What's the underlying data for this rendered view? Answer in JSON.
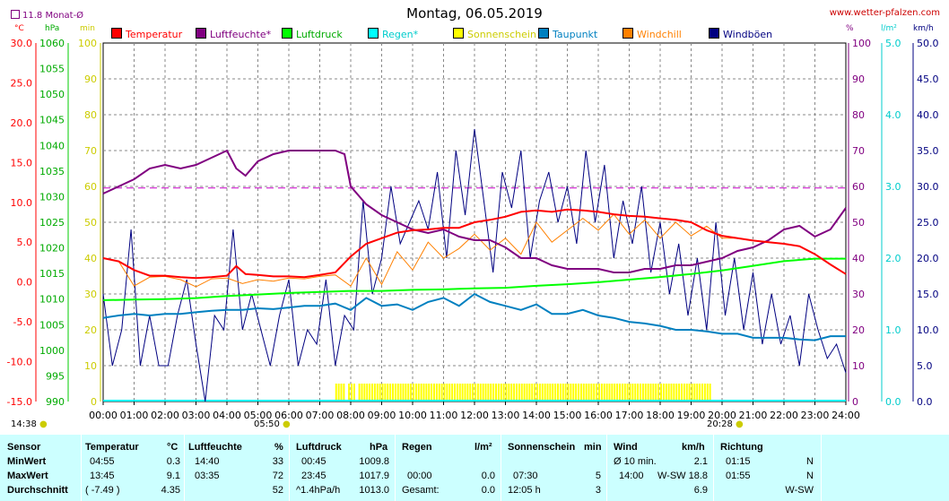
{
  "header": {
    "title": "Montag, 06.05.2019",
    "site": "www.wetter-pfalzen.com",
    "monthly_avg": "11.8 Monat-Ø"
  },
  "units": {
    "temp": "°C",
    "pressure": "hPa",
    "sun": "min",
    "humidity": "%",
    "rain": "l/m²",
    "wind": "km/h"
  },
  "legend": [
    {
      "label": "Temperatur",
      "color": "#ff0000"
    },
    {
      "label": "Luftfeuchte*",
      "color": "#800080"
    },
    {
      "label": "Luftdruck",
      "color": "#00ff00"
    },
    {
      "label": "Regen*",
      "color": "#00ffff"
    },
    {
      "label": "Sonnenschein",
      "color": "#ffff00"
    },
    {
      "label": "Taupunkt",
      "color": "#0080c0"
    },
    {
      "label": "Windchill",
      "color": "#ff8000"
    },
    {
      "label": "Windböen",
      "color": "#000080"
    }
  ],
  "axes": {
    "temp_ticks": [
      "30.0",
      "25.0",
      "20.0",
      "15.0",
      "10.0",
      "5.0",
      "0.0",
      "-5.0",
      "-10.0",
      "-15.0"
    ],
    "pressure_ticks": [
      "1060",
      "1055",
      "1050",
      "1045",
      "1040",
      "1035",
      "1030",
      "1025",
      "1020",
      "1015",
      "1010",
      "1005",
      "1000",
      "995",
      "990"
    ],
    "sun_ticks": [
      "100",
      "90",
      "80",
      "70",
      "60",
      "50",
      "40",
      "30",
      "20",
      "10",
      "0"
    ],
    "humidity_ticks": [
      "100",
      "90",
      "80",
      "70",
      "60",
      "50",
      "40",
      "30",
      "20",
      "10",
      "0"
    ],
    "rain_ticks": [
      "5.0",
      "4.0",
      "3.0",
      "2.0",
      "1.0",
      "0.0"
    ],
    "wind_ticks": [
      "50.0",
      "45.0",
      "40.0",
      "35.0",
      "30.0",
      "25.0",
      "20.0",
      "15.0",
      "10.0",
      "5.0",
      "0.0"
    ],
    "time_ticks": [
      "00:00",
      "01:00",
      "02:00",
      "03:00",
      "04:00",
      "05:00",
      "06:00",
      "07:00",
      "08:00",
      "09:00",
      "10:00",
      "11:00",
      "12:00",
      "13:00",
      "14:00",
      "15:00",
      "16:00",
      "17:00",
      "18:00",
      "19:00",
      "20:00",
      "21:00",
      "22:00",
      "23:00",
      "24:00"
    ]
  },
  "day_info": {
    "daylength": "14:38",
    "sunrise": "05:50",
    "sunset": "20:28"
  },
  "chart_data": {
    "type": "line",
    "title": "Montag, 06.05.2019",
    "x_unit": "hours",
    "xlim": [
      0,
      24
    ],
    "ylim_temp": [
      -15,
      30
    ],
    "ylim_pressure": [
      990,
      1060
    ],
    "ylim_humidity": [
      0,
      100
    ],
    "ylim_wind": [
      0,
      50
    ],
    "ylim_sun": [
      0,
      100
    ],
    "ylim_rain": [
      0,
      5
    ],
    "monthly_avg_temp": 11.8,
    "grid": true,
    "series": [
      {
        "name": "Temperatur",
        "color": "#ff0000",
        "axis": "temp",
        "x": [
          0,
          0.5,
          1,
          1.5,
          2,
          2.5,
          3,
          3.5,
          4,
          4.3,
          4.6,
          5,
          5.5,
          6,
          6.5,
          7,
          7.5,
          8,
          8.5,
          9,
          9.5,
          10,
          10.5,
          11,
          11.5,
          12,
          12.5,
          13,
          13.5,
          14,
          14.5,
          15,
          15.5,
          16,
          16.5,
          17,
          17.5,
          18,
          18.5,
          19,
          19.5,
          20,
          20.5,
          21,
          21.5,
          22,
          22.5,
          23,
          23.5,
          24
        ],
        "y": [
          3,
          2.6,
          1.5,
          0.8,
          0.8,
          0.6,
          0.5,
          0.6,
          0.8,
          2.0,
          1.0,
          0.9,
          0.7,
          0.7,
          0.6,
          0.9,
          1.2,
          3.2,
          4.8,
          5.5,
          6.2,
          6.5,
          6.6,
          6.8,
          6.8,
          7.5,
          7.8,
          8.2,
          8.8,
          9.0,
          8.8,
          9.1,
          9.0,
          8.8,
          8.5,
          8.3,
          8.2,
          8.0,
          7.8,
          7.5,
          6.5,
          5.8,
          5.5,
          5.2,
          5.0,
          4.8,
          4.5,
          3.5,
          2.2,
          1.0
        ]
      },
      {
        "name": "Luftfeuchte*",
        "color": "#800080",
        "axis": "humidity",
        "x": [
          0,
          0.5,
          1,
          1.5,
          2,
          2.5,
          3,
          3.5,
          4,
          4.3,
          4.6,
          5,
          5.5,
          6,
          6.5,
          7,
          7.5,
          7.8,
          8,
          8.5,
          9,
          9.5,
          10,
          10.5,
          11,
          11.5,
          12,
          12.5,
          13,
          13.5,
          14,
          14.5,
          15,
          15.5,
          16,
          16.5,
          17,
          17.5,
          18,
          18.5,
          19,
          19.5,
          20,
          20.5,
          21,
          21.5,
          22,
          22.5,
          23,
          23.5,
          24
        ],
        "y": [
          58,
          60,
          62,
          65,
          66,
          65,
          66,
          68,
          70,
          65,
          63,
          67,
          69,
          70,
          70,
          70,
          70,
          69,
          60,
          55,
          52,
          50,
          48,
          47,
          48,
          46,
          45,
          45,
          43,
          40,
          40,
          38,
          37,
          37,
          37,
          36,
          36,
          37,
          37,
          38,
          38,
          39,
          40,
          42,
          43,
          45,
          48,
          49,
          46,
          48,
          54
        ]
      },
      {
        "name": "Luftdruck",
        "color": "#00ff00",
        "axis": "pressure",
        "x": [
          0,
          1,
          2,
          3,
          4,
          5,
          6,
          7,
          8,
          9,
          10,
          11,
          12,
          13,
          14,
          15,
          16,
          17,
          18,
          19,
          20,
          21,
          22,
          23,
          24
        ],
        "y": [
          1009.8,
          1009.9,
          1010.0,
          1010.2,
          1010.6,
          1010.9,
          1011.2,
          1011.4,
          1011.6,
          1011.6,
          1011.8,
          1011.9,
          1012.1,
          1012.2,
          1012.6,
          1012.9,
          1013.3,
          1013.8,
          1014.3,
          1014.9,
          1015.6,
          1016.5,
          1017.4,
          1017.9,
          1017.9
        ]
      },
      {
        "name": "Taupunkt",
        "color": "#0080c0",
        "axis": "temp",
        "x": [
          0,
          0.5,
          1,
          1.5,
          2,
          2.5,
          3,
          3.5,
          4,
          4.5,
          5,
          5.5,
          6,
          6.5,
          7,
          7.5,
          8,
          8.5,
          9,
          9.5,
          10,
          10.5,
          11,
          11.5,
          12,
          12.5,
          13,
          13.5,
          14,
          14.5,
          15,
          15.5,
          16,
          16.5,
          17,
          17.5,
          18,
          18.5,
          19,
          19.5,
          20,
          20.5,
          21,
          21.5,
          22,
          22.5,
          23,
          23.5,
          24
        ],
        "y": [
          -4.5,
          -4.2,
          -4.0,
          -4.2,
          -4.0,
          -4.0,
          -3.8,
          -3.6,
          -3.5,
          -3.5,
          -3.3,
          -3.4,
          -3.2,
          -3.0,
          -3.0,
          -2.7,
          -3.5,
          -2.0,
          -3.0,
          -2.8,
          -3.5,
          -2.5,
          -2.0,
          -3.0,
          -1.5,
          -2.5,
          -3.0,
          -3.5,
          -2.8,
          -4.0,
          -4.0,
          -3.5,
          -4.2,
          -4.5,
          -5.0,
          -5.2,
          -5.5,
          -6.0,
          -6.0,
          -6.2,
          -6.5,
          -6.5,
          -7.0,
          -7.0,
          -7.0,
          -7.2,
          -7.3,
          -6.8,
          -6.8
        ]
      },
      {
        "name": "Windchill",
        "color": "#ff8000",
        "axis": "temp",
        "x": [
          0,
          0.5,
          1,
          1.5,
          2,
          2.5,
          3,
          3.5,
          4,
          4.5,
          5,
          5.5,
          6,
          6.5,
          7,
          7.5,
          8,
          8.5,
          9,
          9.5,
          10,
          10.5,
          11,
          11.5,
          12,
          12.5,
          13,
          13.5,
          14,
          14.5,
          15,
          15.5,
          16,
          16.5,
          17,
          17.5,
          18,
          18.5,
          19,
          19.5,
          20,
          20.5,
          21,
          21.5,
          22,
          22.5,
          23,
          23.5,
          24
        ],
        "y": [
          3,
          2.6,
          -0.5,
          0.6,
          0.7,
          0.3,
          -0.6,
          0.4,
          0.5,
          -0.2,
          0.3,
          0.1,
          0.5,
          0.4,
          0.7,
          0.9,
          -0.5,
          3.0,
          -0.3,
          3.8,
          1.5,
          5.0,
          3.0,
          4.2,
          6.0,
          4.0,
          5.5,
          3.5,
          7.5,
          5.0,
          6.5,
          8.0,
          6.5,
          8.5,
          6.0,
          7.8,
          5.5,
          7.5,
          5.8,
          7.0,
          5.5,
          5.5,
          5.2,
          5.0,
          4.8,
          4.5,
          3.5,
          2.2,
          1.0
        ]
      },
      {
        "name": "Windböen",
        "color": "#000080",
        "axis": "wind",
        "x": [
          0,
          0.3,
          0.6,
          0.9,
          1.2,
          1.5,
          1.8,
          2.1,
          2.4,
          2.7,
          3.0,
          3.3,
          3.6,
          3.9,
          4.2,
          4.5,
          4.8,
          5.1,
          5.4,
          5.7,
          6.0,
          6.3,
          6.6,
          6.9,
          7.2,
          7.5,
          7.8,
          8.1,
          8.4,
          8.7,
          9.0,
          9.3,
          9.6,
          9.9,
          10.2,
          10.5,
          10.8,
          11.1,
          11.4,
          11.7,
          12.0,
          12.3,
          12.6,
          12.9,
          13.2,
          13.5,
          13.8,
          14.1,
          14.4,
          14.7,
          15.0,
          15.3,
          15.6,
          15.9,
          16.2,
          16.5,
          16.8,
          17.1,
          17.4,
          17.7,
          18.0,
          18.3,
          18.6,
          18.9,
          19.2,
          19.5,
          19.8,
          20.1,
          20.4,
          20.7,
          21.0,
          21.3,
          21.6,
          21.9,
          22.2,
          22.5,
          22.8,
          23.1,
          23.4,
          23.7,
          24.0
        ],
        "y": [
          15,
          5,
          10,
          24,
          5,
          12,
          5,
          5,
          12,
          17,
          8,
          0,
          12,
          10,
          24,
          10,
          15,
          10,
          5,
          12,
          17,
          5,
          10,
          8,
          17,
          5,
          12,
          10,
          28,
          15,
          20,
          30,
          22,
          25,
          28,
          24,
          32,
          20,
          35,
          26,
          38,
          28,
          18,
          32,
          27,
          35,
          20,
          28,
          32,
          25,
          30,
          22,
          35,
          25,
          33,
          20,
          28,
          22,
          30,
          18,
          25,
          15,
          22,
          12,
          20,
          10,
          25,
          12,
          20,
          10,
          18,
          8,
          15,
          8,
          12,
          5,
          15,
          10,
          6,
          8,
          4
        ]
      }
    ],
    "sunshine_bars": {
      "color": "#ffff00",
      "axis": "sun",
      "start": 7.5,
      "end": 19.6,
      "level": 5
    },
    "rain_line": {
      "color": "#00ffff",
      "axis": "rain",
      "value": 0.0
    }
  },
  "stats": {
    "sensor": {
      "header": "Sensor",
      "rows": [
        "MinWert",
        "MaxWert",
        "Durchschnitt"
      ]
    },
    "temperature": {
      "header": "Temperatur",
      "unit": "°C",
      "rows": [
        [
          "04:55",
          "0.3"
        ],
        [
          "13:45",
          "9.1"
        ],
        [
          "( -7.49 )",
          "4.35"
        ]
      ]
    },
    "humidity": {
      "header": "Luftfeuchte",
      "unit": "%",
      "rows": [
        [
          "14:40",
          "33"
        ],
        [
          "03:35",
          "72"
        ],
        [
          "",
          "52"
        ]
      ]
    },
    "pressure": {
      "header": "Luftdruck",
      "unit": "hPa",
      "rows": [
        [
          "00:45",
          "1009.8"
        ],
        [
          "23:45",
          "1017.9"
        ],
        [
          "^1.4hPa/h",
          "1013.0"
        ]
      ]
    },
    "rain": {
      "header": "Regen",
      "unit": "l/m²",
      "rows": [
        [
          "",
          ""
        ],
        [
          "00:00",
          "0.0"
        ],
        [
          "Gesamt:",
          "0.0"
        ]
      ]
    },
    "sunshine": {
      "header": "Sonnenschein",
      "unit": "min",
      "rows": [
        [
          "",
          ""
        ],
        [
          "07:30",
          "5"
        ],
        [
          "12:05 h",
          "3"
        ]
      ]
    },
    "wind": {
      "header": "Wind",
      "unit": "km/h",
      "rows": [
        [
          "Ø 10 min.",
          "2.1"
        ],
        [
          "14:00",
          "W-SW 18.8"
        ],
        [
          "",
          "6.9"
        ]
      ]
    },
    "direction": {
      "header": "Richtung",
      "rows": [
        [
          "01:15",
          "N"
        ],
        [
          "01:55",
          "N"
        ],
        [
          "",
          "W-SW"
        ]
      ]
    }
  }
}
